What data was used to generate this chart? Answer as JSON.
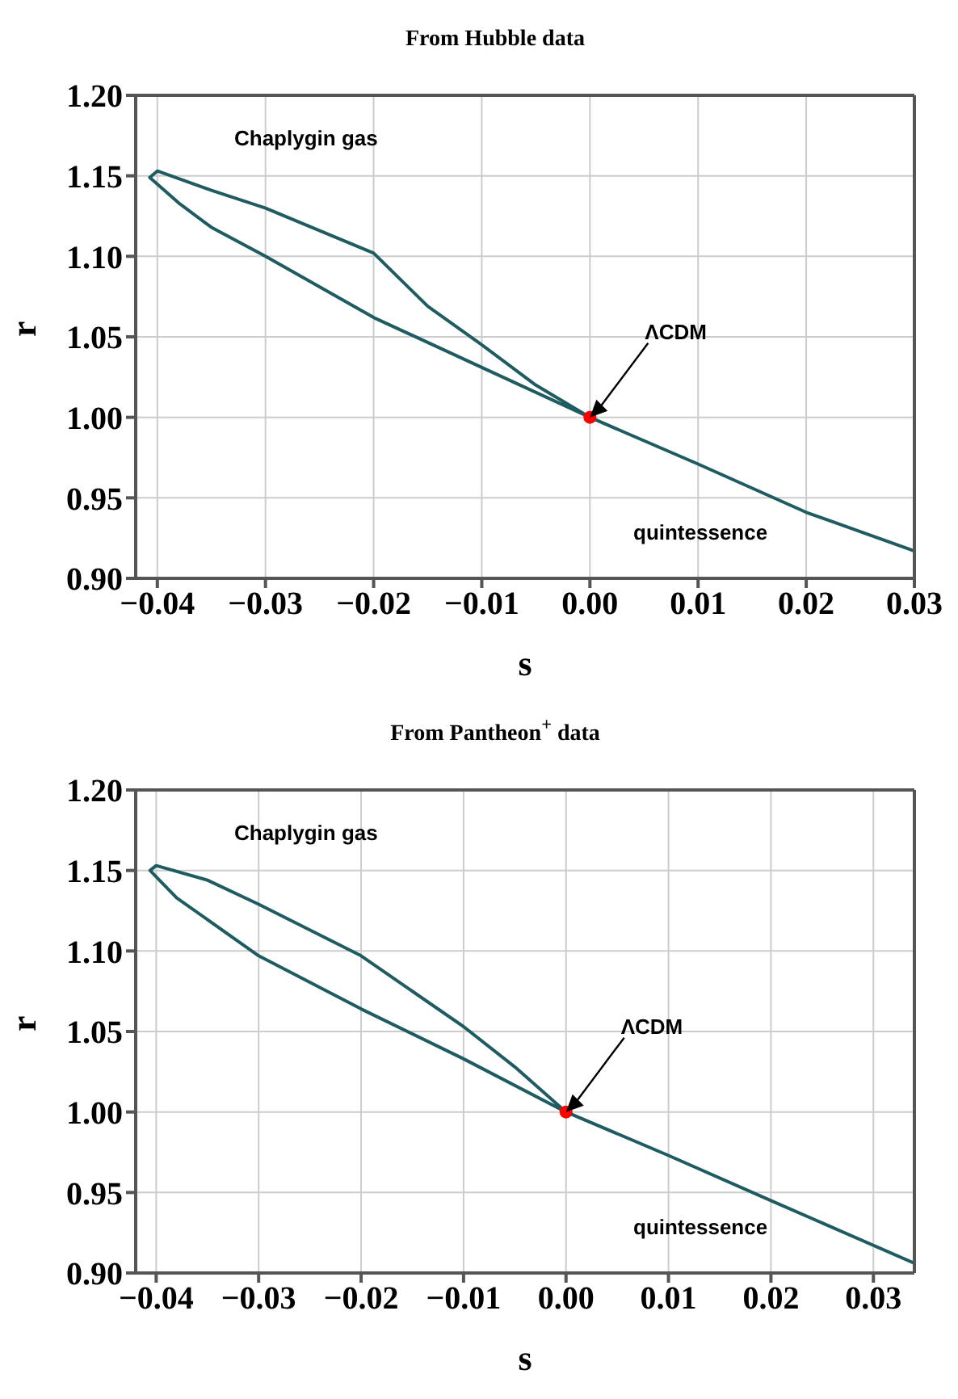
{
  "chart_data": [
    {
      "type": "line",
      "title": "From Hubble data",
      "xlabel": "s",
      "ylabel": "r",
      "xlim": [
        -0.042,
        0.03
      ],
      "ylim": [
        0.9,
        1.2
      ],
      "xticks": [
        {
          "value": -0.04,
          "label": "−0.04"
        },
        {
          "value": -0.03,
          "label": "−0.03"
        },
        {
          "value": -0.02,
          "label": "−0.02"
        },
        {
          "value": -0.01,
          "label": "−0.01"
        },
        {
          "value": 0,
          "label": "0.00"
        },
        {
          "value": 0.01,
          "label": "0.01"
        },
        {
          "value": 0.02,
          "label": "0.02"
        },
        {
          "value": 0.03,
          "label": "0.03"
        }
      ],
      "yticks": [
        {
          "value": 0.9,
          "label": "0.90"
        },
        {
          "value": 0.95,
          "label": "0.95"
        },
        {
          "value": 1.0,
          "label": "1.00"
        },
        {
          "value": 1.05,
          "label": "1.05"
        },
        {
          "value": 1.1,
          "label": "1.10"
        },
        {
          "value": 1.15,
          "label": "1.15"
        },
        {
          "value": 1.2,
          "label": "1.20"
        }
      ],
      "grid": true,
      "legend": false,
      "series": [
        {
          "color": "#1f5c61",
          "x": [
            0.03,
            0.02,
            0.01,
            0,
            -0.01,
            -0.02,
            -0.03,
            -0.035,
            -0.038,
            -0.0407,
            -0.04,
            -0.035,
            -0.03,
            -0.02,
            -0.015,
            -0.01,
            -0.005,
            0
          ],
          "values": [
            0.917,
            0.941,
            0.971,
            1.0,
            1.031,
            1.062,
            1.1,
            1.118,
            1.133,
            1.149,
            1.153,
            1.141,
            1.13,
            1.102,
            1.069,
            1.045,
            1.02,
            1.0
          ]
        },
        {
          "type": "scatter",
          "color": "#ff0000",
          "x": [
            0
          ],
          "values": [
            1.0
          ]
        }
      ],
      "annotations": [
        {
          "text": "ΛCDM",
          "x": 0,
          "y": 1.0
        },
        "Chaplygin gas",
        "quintessence"
      ]
    },
    {
      "type": "line",
      "title": "From Pantheon$^{+}$ data",
      "xlabel": "s",
      "ylabel": "r",
      "xlim": [
        -0.042,
        0.034
      ],
      "ylim": [
        0.9,
        1.2
      ],
      "xticks": [
        {
          "value": -0.04,
          "label": "−0.04"
        },
        {
          "value": -0.03,
          "label": "−0.03"
        },
        {
          "value": -0.02,
          "label": "−0.02"
        },
        {
          "value": -0.01,
          "label": "−0.01"
        },
        {
          "value": 0,
          "label": "0.00"
        },
        {
          "value": 0.01,
          "label": "0.01"
        },
        {
          "value": 0.02,
          "label": "0.02"
        },
        {
          "value": 0.03,
          "label": "0.03"
        }
      ],
      "yticks": [
        {
          "value": 0.9,
          "label": "0.90"
        },
        {
          "value": 0.95,
          "label": "0.95"
        },
        {
          "value": 1.0,
          "label": "1.00"
        },
        {
          "value": 1.05,
          "label": "1.05"
        },
        {
          "value": 1.1,
          "label": "1.10"
        },
        {
          "value": 1.15,
          "label": "1.15"
        },
        {
          "value": 1.2,
          "label": "1.20"
        }
      ],
      "grid": true,
      "legend": false,
      "series": [
        {
          "color": "#1f5c61",
          "x": [
            0.034,
            0.02,
            0.01,
            0,
            -0.01,
            -0.02,
            -0.03,
            -0.038,
            -0.0406,
            -0.04,
            -0.035,
            -0.03,
            -0.02,
            -0.01,
            -0.005,
            0
          ],
          "values": [
            0.906,
            0.945,
            0.973,
            1.0,
            1.033,
            1.064,
            1.097,
            1.133,
            1.15,
            1.153,
            1.144,
            1.129,
            1.097,
            1.053,
            1.028,
            1.0
          ]
        },
        {
          "type": "scatter",
          "color": "#ff0000",
          "x": [
            0
          ],
          "values": [
            1.0
          ]
        }
      ],
      "annotations": [
        {
          "text": "ΛCDM",
          "x": 0,
          "y": 1.0
        },
        "Chaplygin gas",
        "quintessence"
      ]
    }
  ]
}
